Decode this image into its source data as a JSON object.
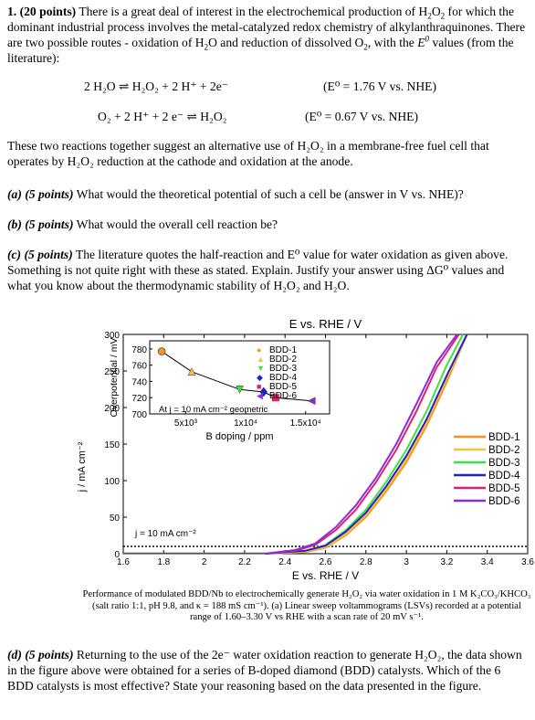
{
  "q1": {
    "number": "1.",
    "points": "(20 points)",
    "intro_a": " There is a great deal of interest in the electrochemical production of H",
    "intro_b": "O",
    "intro_c": " for which the dominant industrial process involves the metal-catalyzed redox chemistry of alkylanthraquinones. There are two possible routes - oxidation of H",
    "intro_d": "O and reduction of dissolved O",
    "intro_e": ", with the ",
    "intro_f": " values (from the literature):"
  },
  "reactions": [
    {
      "equation": "2 H₂O ⇌ H₂O₂ + 2 H⁺ + 2e⁻",
      "value": "(E⁰ = 1.76 V vs. NHE)"
    },
    {
      "equation": "O₂ + 2 H⁺ + 2 e⁻ ⇌ H₂O₂",
      "value": "(E⁰ = 0.67 V vs. NHE)"
    }
  ],
  "para2": "These two reactions together suggest an alternative use of H₂O₂ in a membrane-free fuel cell that operates by H₂O₂ reduction at the cathode and oxidation at the anode.",
  "qa": {
    "label": "(a) (5 points)",
    "text": " What would the theoretical potential of such a cell be (answer in V vs. NHE)?"
  },
  "qb": {
    "label": "(b) (5 points)",
    "text": " What would the overall cell reaction be?"
  },
  "qc": {
    "label": "(c) (5 points)",
    "text": " The literature quotes the half-reaction and E⁰ value for water oxidation as given above. Something is not quite right with these as stated. Explain. Justify your answer using ΔG⁰ values and what you know about the thermodynamic stability of H₂O₂ and H₂O."
  },
  "qd": {
    "label": "(d) (5 points)",
    "text": " Returning to the use of the 2e⁻ water oxidation reaction to generate H₂O₂, the data shown in the figure above were obtained for a series of B-doped diamond (BDD) catalysts. Which of the 6 BDD catalysts is most effective? State your reasoning based on the data presented in the figure."
  },
  "caption": "Performance of modulated BDD/Nb to electrochemically generate H₂O₂ via water oxidation in 1 M K₂CO₃/KHCO₃ (salt ratio 1:1, pH 9.8, and κ = 188 mS cm⁻¹). (a) Linear sweep voltammograms (LSVs) recorded at a potential range of 1.60–3.30 V vs RHE with a scan rate of 20 mV s⁻¹.",
  "chart_data": [
    {
      "type": "line",
      "title": "",
      "top_axis_label": "E vs. RHE / V",
      "xlabel": "E vs. RHE / V",
      "ylabel": "j / mA cm⁻²",
      "xlim": [
        1.6,
        3.6
      ],
      "ylim": [
        0,
        300
      ],
      "x_ticks": [
        "1.6",
        "1.8",
        "2",
        "2.2",
        "2.4",
        "2.6",
        "2.8",
        "3",
        "3.2",
        "3.4",
        "3.6"
      ],
      "y_ticks": [
        "0",
        "50",
        "100",
        "150",
        "200",
        "250",
        "300"
      ],
      "reference_line": {
        "label": "j = 10 mA cm⁻²",
        "y": 10
      },
      "legend_position": "right",
      "series": [
        {
          "name": "BDD-1",
          "color": "#f7931e",
          "x": [
            2.3,
            2.5,
            2.6,
            2.7,
            2.8,
            2.9,
            3.0,
            3.1,
            3.2,
            3.3
          ],
          "y": [
            0,
            2,
            8,
            25,
            50,
            85,
            125,
            175,
            235,
            300
          ]
        },
        {
          "name": "BDD-2",
          "color": "#f5c242",
          "x": [
            2.3,
            2.5,
            2.6,
            2.7,
            2.8,
            2.9,
            3.0,
            3.1,
            3.2,
            3.3
          ],
          "y": [
            0,
            3,
            9,
            27,
            53,
            88,
            130,
            180,
            240,
            300
          ]
        },
        {
          "name": "BDD-3",
          "color": "#3fe03f",
          "x": [
            2.3,
            2.5,
            2.6,
            2.7,
            2.8,
            2.9,
            3.0,
            3.1,
            3.2,
            3.28
          ],
          "y": [
            0,
            4,
            12,
            32,
            60,
            98,
            142,
            195,
            258,
            300
          ]
        },
        {
          "name": "BDD-4",
          "color": "#2222cc",
          "x": [
            2.3,
            2.5,
            2.6,
            2.7,
            2.8,
            2.9,
            3.0,
            3.1,
            3.2,
            3.3
          ],
          "y": [
            0,
            4,
            11,
            30,
            56,
            92,
            134,
            184,
            244,
            300
          ]
        },
        {
          "name": "BDD-5",
          "color": "#e0206c",
          "x": [
            2.3,
            2.45,
            2.55,
            2.65,
            2.75,
            2.85,
            2.95,
            3.05,
            3.15,
            3.26
          ],
          "y": [
            0,
            4,
            12,
            32,
            60,
            98,
            142,
            195,
            255,
            300
          ]
        },
        {
          "name": "BDD-6",
          "color": "#8a2be2",
          "x": [
            2.3,
            2.45,
            2.55,
            2.65,
            2.75,
            2.85,
            2.95,
            3.05,
            3.15,
            3.25
          ],
          "y": [
            0,
            5,
            14,
            36,
            66,
            104,
            150,
            205,
            262,
            300
          ]
        }
      ]
    },
    {
      "type": "scatter",
      "xlabel": "B doping / ppm",
      "ylabel": "Overpotential / mV",
      "x_ticks": [
        "5x10³",
        "1x10⁴",
        "1.5x10⁴"
      ],
      "y_ticks": [
        "700",
        "720",
        "740",
        "760",
        "780"
      ],
      "xlim": [
        2000,
        17000
      ],
      "ylim": [
        700,
        790
      ],
      "annotation": "At j = 10 mA cm⁻² geometric",
      "points": [
        {
          "name": "BDD-1",
          "x": 3000,
          "y": 777,
          "marker": "circle",
          "color": "#f7931e"
        },
        {
          "name": "BDD-2",
          "x": 5500,
          "y": 752,
          "marker": "triangle-up",
          "color": "#f5c242"
        },
        {
          "name": "BDD-3",
          "x": 9500,
          "y": 730,
          "marker": "triangle-down",
          "color": "#3fe03f"
        },
        {
          "name": "BDD-4",
          "x": 11500,
          "y": 727,
          "marker": "diamond",
          "color": "#2222cc"
        },
        {
          "name": "BDD-5",
          "x": 12500,
          "y": 720,
          "marker": "square",
          "color": "#e0206c"
        },
        {
          "name": "BDD-6",
          "x": 15500,
          "y": 716,
          "marker": "triangle-left",
          "color": "#8a2be2"
        }
      ]
    }
  ]
}
